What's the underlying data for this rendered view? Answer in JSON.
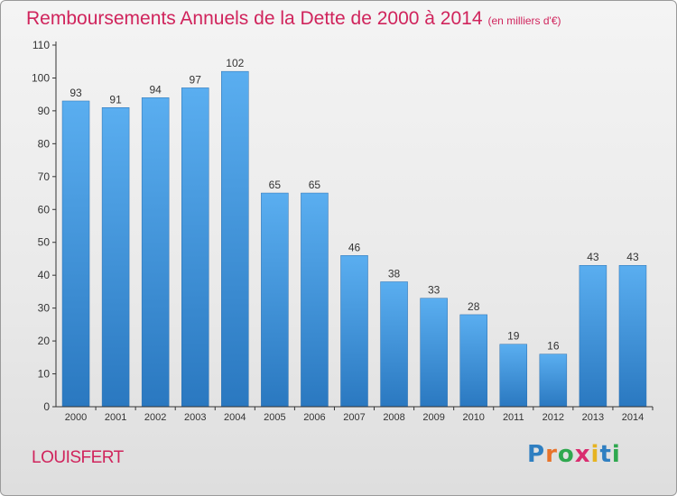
{
  "title": "Remboursements Annuels de la Dette de 2000 à 2014",
  "unit": "(en milliers d'€)",
  "town": "LOUISFERT",
  "logo": {
    "letters": [
      "P",
      "r",
      "o",
      "x",
      "i",
      "t",
      "i"
    ],
    "colors": [
      "#2f7fc1",
      "#e8732a",
      "#2fa84f",
      "#d92d6f",
      "#e6b321",
      "#2f7fc1",
      "#2fa84f"
    ]
  },
  "colors": {
    "title": "#d0245c",
    "bar_light": "#5aaef0",
    "bar_dark": "#2a78c0",
    "axis": "#333333"
  },
  "chart_data": {
    "type": "bar",
    "categories": [
      "2000",
      "2001",
      "2002",
      "2003",
      "2004",
      "2005",
      "2006",
      "2007",
      "2008",
      "2009",
      "2010",
      "2011",
      "2012",
      "2013",
      "2014"
    ],
    "values": [
      93,
      91,
      94,
      97,
      102,
      65,
      65,
      46,
      38,
      33,
      28,
      19,
      16,
      43,
      43
    ],
    "ylim": [
      0,
      110
    ],
    "yticks": [
      0,
      10,
      20,
      30,
      40,
      50,
      60,
      70,
      80,
      90,
      100,
      110
    ],
    "grid": false,
    "data_labels": true
  }
}
